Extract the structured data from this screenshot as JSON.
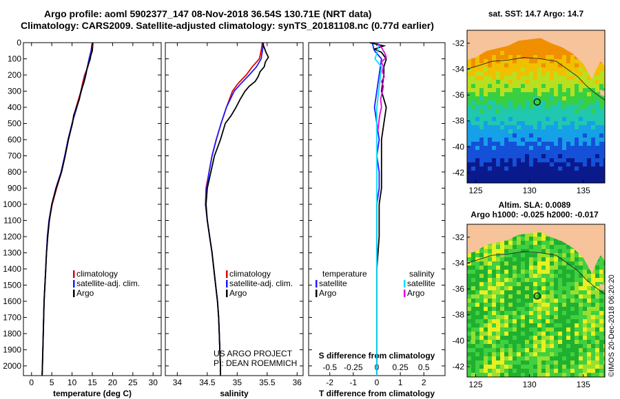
{
  "header": {
    "title_line1": "Argo profile: aoml 5902377_147 08-Nov-2018 36.54S 130.71E (NRT data)",
    "title_line2": "Climatology: CARS2009. Satellite-adjusted climatology: synTS_20181108.nc (0.77d earlier)"
  },
  "colors": {
    "climatology": "#e00000",
    "satellite_adj": "#1a1aff",
    "argo": "#000000",
    "satellite_diff_S": "#00e0ff",
    "argo_diff_S": "#e000e0",
    "land": "#f6c39a",
    "sea_bg": "#ffffff"
  },
  "depth_axis": {
    "ticks": [
      "0",
      "100",
      "200",
      "300",
      "400",
      "500",
      "600",
      "700",
      "800",
      "900",
      "1000",
      "1100",
      "1200",
      "1300",
      "1400",
      "1500",
      "1600",
      "1700",
      "1800",
      "1900",
      "2000"
    ]
  },
  "chart_data": [
    {
      "type": "line",
      "name": "temperature",
      "xlabel": "temperature (deg C)",
      "ylabel": "depth",
      "xlim": [
        -2,
        32
      ],
      "ylim": [
        2060,
        0
      ],
      "xticks": [
        0,
        5,
        10,
        15,
        20,
        25,
        30
      ],
      "xtick_labels": [
        "0",
        "5",
        "10",
        "15",
        "20",
        "25",
        "30"
      ],
      "legend": {
        "position": "lower-middle",
        "items": [
          "climatology",
          "satellite-adj. clim.",
          "Argo"
        ]
      },
      "series": [
        {
          "name": "climatology",
          "color": "#e00000",
          "depth": [
            0,
            50,
            100,
            150,
            200,
            250,
            300,
            400,
            450,
            500,
            600,
            700,
            800,
            900,
            1000,
            1100,
            1200,
            1300,
            1400,
            1500,
            1600,
            1700,
            1800,
            1900,
            2000,
            2060
          ],
          "value": [
            15.2,
            15.0,
            14.4,
            13.9,
            13.1,
            12.6,
            12.2,
            11.0,
            10.5,
            10.0,
            9.1,
            8.3,
            7.4,
            6.2,
            5.1,
            4.4,
            4.0,
            3.7,
            3.5,
            3.3,
            3.1,
            3.0,
            2.9,
            2.8,
            2.7,
            2.6
          ]
        },
        {
          "name": "satellite-adj. clim.",
          "color": "#1a1aff",
          "depth": [
            0,
            50,
            100,
            150,
            200,
            250,
            300,
            400,
            450,
            500,
            600,
            700,
            800,
            900,
            1000,
            1100,
            1200,
            1300,
            1400,
            1500,
            1600,
            1700,
            1800,
            1900,
            2000,
            2060
          ],
          "value": [
            15.0,
            14.7,
            14.2,
            13.8,
            13.3,
            12.8,
            12.3,
            11.2,
            10.6,
            10.0,
            9.0,
            8.2,
            7.3,
            6.0,
            5.0,
            4.3,
            3.9,
            3.7,
            3.5,
            3.3,
            3.1,
            3.0,
            2.9,
            2.8,
            2.7,
            2.6
          ]
        },
        {
          "name": "Argo",
          "color": "#000000",
          "depth": [
            0,
            20,
            50,
            80,
            100,
            150,
            200,
            250,
            300,
            350,
            400,
            450,
            500,
            600,
            700,
            800,
            900,
            1000,
            1100,
            1200,
            1300,
            1400,
            1500,
            1600,
            1700,
            1800,
            1900,
            2000,
            2060
          ],
          "value": [
            15.1,
            14.9,
            15.0,
            14.6,
            14.5,
            13.8,
            13.4,
            12.9,
            12.2,
            11.8,
            11.1,
            10.4,
            10.1,
            9.1,
            8.3,
            7.4,
            6.1,
            5.0,
            4.4,
            4.0,
            3.7,
            3.5,
            3.3,
            3.1,
            3.0,
            2.9,
            2.8,
            2.7,
            2.6
          ]
        }
      ]
    },
    {
      "type": "line",
      "name": "salinity",
      "xlabel": "salinity",
      "ylabel": "depth",
      "xlim": [
        33.8,
        36.1
      ],
      "ylim": [
        2060,
        0
      ],
      "xticks": [
        34,
        34.5,
        35,
        35.5,
        36
      ],
      "xtick_labels": [
        "34",
        "34.5",
        "35",
        "35.5",
        "36"
      ],
      "legend": {
        "position": "lower-right",
        "items": [
          "climatology",
          "satellite-adj. clim.",
          "Argo"
        ]
      },
      "annotations": [
        "US ARGO PROJECT",
        "PI: DEAN ROEMMICH"
      ],
      "series": [
        {
          "name": "climatology",
          "color": "#e00000",
          "depth": [
            0,
            50,
            100,
            150,
            200,
            250,
            300,
            400,
            500,
            600,
            700,
            800,
            900,
            1000,
            1100,
            1200,
            1300,
            1400,
            1500,
            1600,
            1700,
            1800,
            1900,
            2000,
            2060
          ],
          "value": [
            35.42,
            35.4,
            35.37,
            35.25,
            35.15,
            35.02,
            34.92,
            34.82,
            34.73,
            34.65,
            34.58,
            34.53,
            34.48,
            34.47,
            34.5,
            34.54,
            34.58,
            34.61,
            34.64,
            34.67,
            34.69,
            34.7,
            34.71,
            34.72,
            34.72
          ]
        },
        {
          "name": "satellite-adj. clim.",
          "color": "#1a1aff",
          "depth": [
            0,
            50,
            100,
            150,
            200,
            250,
            300,
            400,
            500,
            600,
            700,
            800,
            900,
            1000,
            1100,
            1200,
            1300,
            1400,
            1500,
            1600,
            1700,
            1800,
            1900,
            2000,
            2060
          ],
          "value": [
            35.44,
            35.42,
            35.4,
            35.32,
            35.2,
            35.07,
            34.95,
            34.82,
            34.73,
            34.65,
            34.58,
            34.53,
            34.49,
            34.47,
            34.5,
            34.54,
            34.58,
            34.61,
            34.64,
            34.67,
            34.69,
            34.7,
            34.71,
            34.72,
            34.72
          ]
        },
        {
          "name": "Argo",
          "color": "#000000",
          "depth": [
            0,
            30,
            60,
            90,
            120,
            150,
            180,
            210,
            240,
            270,
            300,
            350,
            400,
            450,
            500,
            600,
            700,
            800,
            900,
            1000,
            1100,
            1200,
            1300,
            1400,
            1500,
            1600,
            1700,
            1800,
            1900,
            2000,
            2060
          ],
          "value": [
            35.42,
            35.45,
            35.48,
            35.52,
            35.47,
            35.45,
            35.38,
            35.35,
            35.3,
            35.2,
            35.13,
            35.05,
            34.98,
            34.9,
            34.8,
            34.72,
            34.62,
            34.56,
            34.5,
            34.48,
            34.5,
            34.54,
            34.58,
            34.61,
            34.64,
            34.67,
            34.69,
            34.7,
            34.71,
            34.72,
            34.72
          ]
        }
      ]
    },
    {
      "type": "line",
      "name": "difference from climatology",
      "xlabel": "T difference from climatology",
      "xlabel2": "S difference from climatology",
      "ylabel": "depth",
      "xlim": [
        -2.9,
        2.9
      ],
      "ylim": [
        2060,
        0
      ],
      "xticks": [
        -2,
        -1,
        0,
        1,
        2
      ],
      "xtick_labels": [
        "-2",
        "-1",
        "0",
        "1",
        "2"
      ],
      "xticks_S": [
        -0.5,
        -0.25,
        0,
        0.25,
        0.5
      ],
      "xtick_labels_S": [
        "-0.5",
        "-0.25",
        "0",
        "0.25",
        "0.5"
      ],
      "S_scale_factor": 4,
      "legend": {
        "temperature": {
          "title": "temperature",
          "items": [
            "satellite",
            "Argo"
          ]
        },
        "salinity": {
          "title": "salinity",
          "items": [
            "satellite",
            "Argo"
          ]
        }
      },
      "series": [
        {
          "name": "temperature satellite",
          "color": "#1a1aff",
          "depth": [
            0,
            50,
            100,
            200,
            300,
            400,
            500,
            600,
            700,
            800,
            900,
            1000,
            1200,
            1400,
            1600,
            1800,
            2000,
            2060
          ],
          "value": [
            -0.2,
            -0.1,
            0.2,
            0.1,
            0.0,
            -0.1,
            0.0,
            0.1,
            0.0,
            0.1,
            0.1,
            0.0,
            0.0,
            0.0,
            0.0,
            0.0,
            0.0,
            0.0
          ]
        },
        {
          "name": "temperature Argo",
          "color": "#000000",
          "depth": [
            0,
            20,
            40,
            60,
            80,
            100,
            150,
            200,
            300,
            400,
            500,
            600,
            700,
            800,
            900,
            1000,
            1200,
            1400,
            1600,
            1800,
            2000,
            2060
          ],
          "value": [
            -0.3,
            0.3,
            -0.1,
            0.2,
            0.3,
            0.4,
            0.3,
            0.3,
            0.2,
            0.4,
            0.3,
            0.2,
            0.2,
            0.2,
            0.2,
            0.1,
            0.1,
            0.0,
            0.0,
            0.0,
            0.0,
            0.0
          ]
        },
        {
          "name": "salinity satellite",
          "color": "#00e0ff",
          "depth": [
            0,
            50,
            100,
            150,
            200,
            250,
            300,
            350,
            400,
            500,
            600,
            700,
            800,
            900,
            1000,
            1100,
            1200,
            1400,
            1600,
            1800,
            2000,
            2060
          ],
          "value": [
            0.02,
            0.01,
            -0.02,
            0.05,
            0.04,
            0.03,
            0.02,
            0.01,
            0.0,
            0.0,
            0.0,
            0.0,
            0.0,
            0.0,
            0.0,
            0.0,
            0.0,
            0.0,
            0.0,
            0.0,
            0.0,
            0.0
          ]
        },
        {
          "name": "salinity Argo",
          "color": "#e000e0",
          "depth": [
            0,
            30,
            60,
            90,
            120,
            150,
            180,
            210,
            240,
            270,
            300,
            350,
            400,
            450,
            500,
            550
          ],
          "value": [
            0.0,
            0.05,
            0.08,
            0.1,
            0.05,
            0.07,
            0.06,
            0.08,
            0.05,
            0.07,
            0.06,
            0.04,
            0.05,
            0.03,
            0.02,
            0.01
          ]
        }
      ]
    }
  ],
  "maps": {
    "sst": {
      "title": "sat. SST: 14.7 Argo: 14.7",
      "lon_ticks": [
        "125",
        "130",
        "135"
      ],
      "lat_ticks": [
        "-32",
        "-34",
        "-36",
        "-38",
        "-40",
        "-42"
      ]
    },
    "sla": {
      "title_line1": "Altim. SLA: 0.0089",
      "title_line2": "Argo h1000: -0.025 h2000: -0.017",
      "lon_ticks": [
        "125",
        "130",
        "135"
      ],
      "lat_ticks": [
        "-32",
        "-34",
        "-36",
        "-38",
        "-40",
        "-42"
      ]
    }
  },
  "footer": {
    "copyright": "©IMOS 20-Dec-2018 06:20:20"
  }
}
